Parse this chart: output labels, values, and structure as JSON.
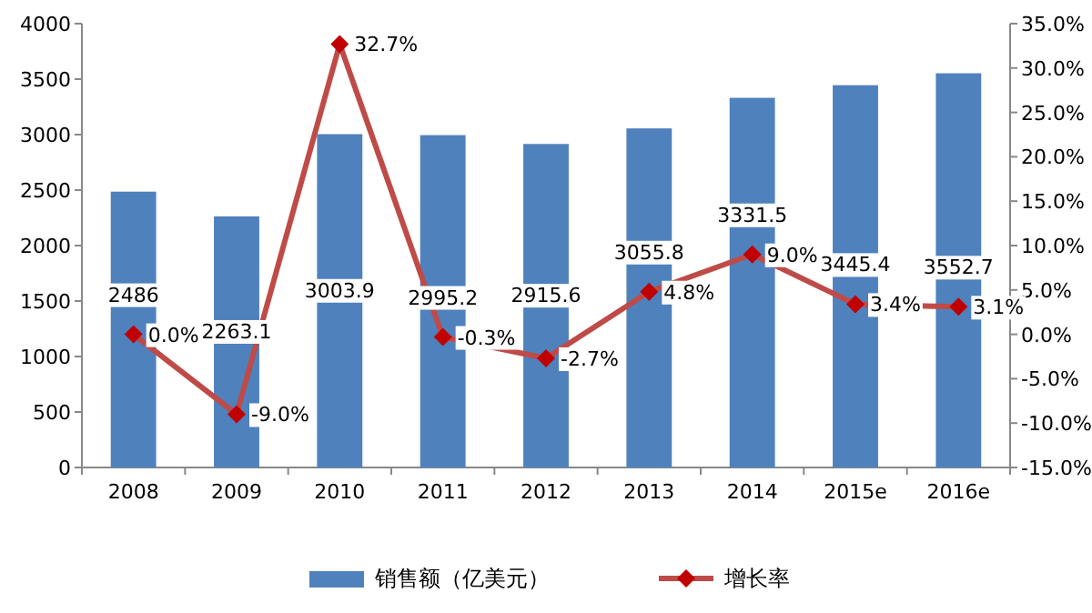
{
  "chart_data": {
    "type": "bar",
    "categories": [
      "2008",
      "2009",
      "2010",
      "2011",
      "2012",
      "2013",
      "2014",
      "2015e",
      "2016e"
    ],
    "series": [
      {
        "name": "销售额（亿美元）",
        "color": "#4f81bd",
        "values": [
          2486,
          2263.1,
          3003.9,
          2995.2,
          2915.6,
          3055.8,
          3331.5,
          3445.4,
          3552.7
        ],
        "value_labels": [
          "2486",
          "2263.1",
          "3003.9",
          "2995.2",
          "2915.6",
          "3055.8",
          "3331.5",
          "3445.4",
          "3552.7"
        ]
      },
      {
        "name": "增长率",
        "type": "line",
        "axis": "y2",
        "color": "#be4b48",
        "values": [
          0.0,
          -9.0,
          32.7,
          -0.3,
          -2.7,
          4.8,
          9.0,
          3.4,
          3.1
        ],
        "value_labels": [
          "0.0%",
          "-9.0%",
          "32.7%",
          "-0.3%",
          "-2.7%",
          "4.8%",
          "9.0%",
          "3.4%",
          "3.1%"
        ]
      }
    ],
    "ylim": [
      0,
      4000
    ],
    "yticks": [
      0,
      500,
      1000,
      1500,
      2000,
      2500,
      3000,
      3500,
      4000
    ],
    "y2lim": [
      -15,
      35
    ],
    "y2ticks": [
      {
        "value": -15,
        "label": "-15.0%"
      },
      {
        "value": -10,
        "label": "-10.0%"
      },
      {
        "value": -5,
        "label": "-5.0%"
      },
      {
        "value": 0,
        "label": "0.0%"
      },
      {
        "value": 5,
        "label": "5.0%"
      },
      {
        "value": 10,
        "label": "10.0%"
      },
      {
        "value": 15,
        "label": "15.0%"
      },
      {
        "value": 20,
        "label": "20.0%"
      },
      {
        "value": 25,
        "label": "25.0%"
      },
      {
        "value": 30,
        "label": "30.0%"
      },
      {
        "value": 35,
        "label": "35.0%"
      }
    ],
    "marker": "diamond",
    "legend": "bottom",
    "grid": false
  }
}
